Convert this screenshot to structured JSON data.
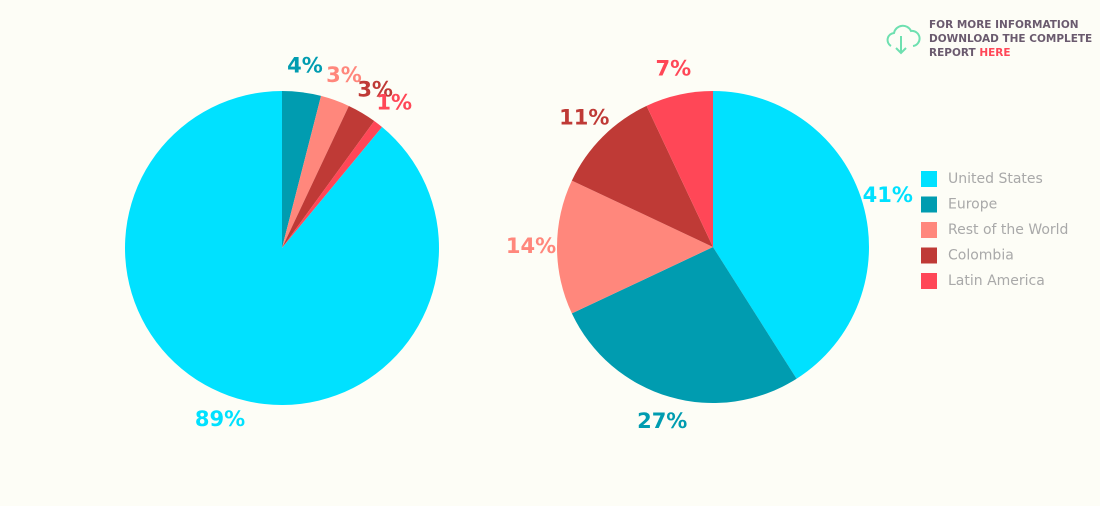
{
  "chart_data": [
    {
      "type": "pie",
      "values": [
        4,
        3,
        3,
        1,
        89
      ],
      "value_labels": [
        "4%",
        "3%",
        "3%",
        "1%",
        "89%"
      ],
      "colors": [
        "#009cb0",
        "#ff877c",
        "#bf3a36",
        "#ff4757",
        "#00e1ff"
      ]
    },
    {
      "type": "pie",
      "categories": [
        "United States",
        "Europe",
        "Rest of the World",
        "Colombia",
        "Latin America"
      ],
      "values": [
        41,
        27,
        14,
        11,
        7
      ],
      "value_labels": [
        "41%",
        "27%",
        "14%",
        "11%",
        "7%"
      ],
      "colors": [
        "#00e1ff",
        "#009cb0",
        "#ff877c",
        "#bf3a36",
        "#ff4757"
      ],
      "legend": "right"
    }
  ],
  "cta": {
    "lines": [
      "FOR MORE INFORMATION",
      "DOWNLOAD THE COMPLETE",
      "REPORT"
    ],
    "link": "HERE"
  }
}
